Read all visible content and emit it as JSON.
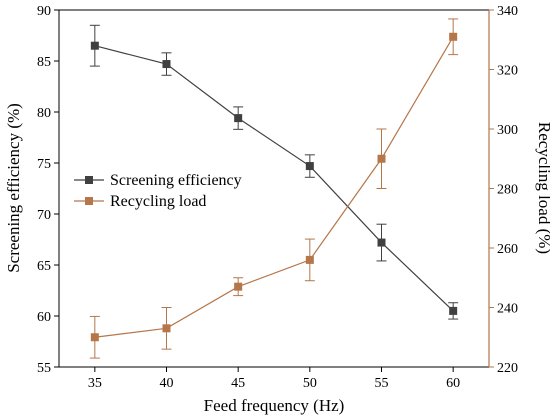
{
  "chart_data": {
    "type": "line",
    "title": "",
    "xlabel": "Feed frequency (Hz)",
    "ylabel_left": "Screening efficiency (%)",
    "ylabel_right": "Recycling load (%)",
    "x": [
      35,
      40,
      45,
      50,
      55,
      60
    ],
    "x_ticks": [
      "35",
      "40",
      "45",
      "50",
      "55",
      "60"
    ],
    "xlim": [
      32.5,
      62.5
    ],
    "ylim_left": [
      55,
      90
    ],
    "y_ticks_left": [
      "55",
      "60",
      "65",
      "70",
      "75",
      "80",
      "85",
      "90"
    ],
    "ylim_right": [
      220,
      340
    ],
    "y_ticks_right": [
      "220",
      "240",
      "260",
      "280",
      "300",
      "320",
      "340"
    ],
    "grid": false,
    "legend_position": "center-left",
    "series": [
      {
        "name": "Screening efficiency",
        "axis": "left",
        "color": "#404040",
        "marker": "square",
        "values": [
          86.5,
          84.7,
          79.4,
          74.7,
          67.2,
          60.5
        ],
        "error": [
          2.0,
          1.1,
          1.1,
          1.1,
          1.8,
          0.8
        ]
      },
      {
        "name": "Recycling load",
        "axis": "right",
        "color": "#b5764a",
        "marker": "square",
        "values": [
          230,
          233,
          247,
          256,
          290,
          331
        ],
        "error": [
          7,
          7,
          3,
          7,
          10,
          6
        ]
      }
    ]
  }
}
